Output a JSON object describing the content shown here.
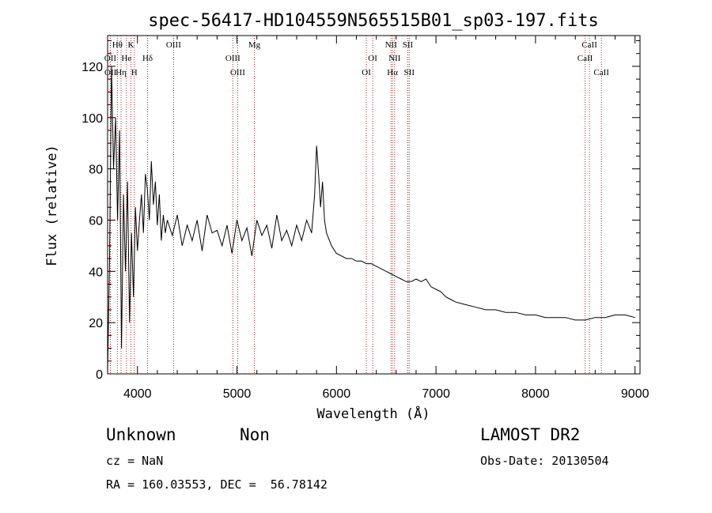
{
  "chart_data": {
    "type": "line",
    "title": "spec-56417-HD104559N565515B01_sp03-197.fits",
    "xlabel": "Wavelength (Å)",
    "ylabel": "Flux (relative)",
    "xlim": [
      3700,
      9050
    ],
    "ylim": [
      0,
      132
    ],
    "xticks": [
      4000,
      5000,
      6000,
      7000,
      8000,
      9000
    ],
    "yticks": [
      0,
      20,
      40,
      60,
      80,
      100,
      120
    ],
    "grid": false,
    "series": [
      {
        "color": "#000000",
        "x": [
          3700,
          3720,
          3740,
          3760,
          3780,
          3800,
          3820,
          3840,
          3860,
          3880,
          3900,
          3920,
          3940,
          3960,
          3980,
          4000,
          4020,
          4040,
          4060,
          4080,
          4100,
          4120,
          4140,
          4160,
          4180,
          4200,
          4220,
          4240,
          4260,
          4280,
          4300,
          4350,
          4400,
          4450,
          4500,
          4550,
          4600,
          4650,
          4700,
          4750,
          4800,
          4850,
          4900,
          4950,
          5000,
          5050,
          5100,
          5150,
          5200,
          5250,
          5300,
          5350,
          5400,
          5450,
          5500,
          5550,
          5600,
          5650,
          5700,
          5750,
          5780,
          5800,
          5820,
          5840,
          5860,
          5880,
          5900,
          5950,
          6000,
          6050,
          6100,
          6150,
          6200,
          6250,
          6300,
          6350,
          6400,
          6450,
          6500,
          6550,
          6600,
          6650,
          6700,
          6750,
          6800,
          6850,
          6900,
          6950,
          7000,
          7050,
          7100,
          7150,
          7200,
          7300,
          7400,
          7500,
          7600,
          7700,
          7800,
          7900,
          8000,
          8100,
          8200,
          8300,
          8400,
          8500,
          8600,
          8700,
          8800,
          8900,
          9000
        ],
        "y": [
          0,
          45,
          120,
          80,
          100,
          60,
          95,
          10,
          70,
          40,
          75,
          20,
          55,
          30,
          65,
          48,
          60,
          70,
          55,
          78,
          72,
          60,
          83,
          66,
          75,
          58,
          70,
          52,
          62,
          55,
          60,
          54,
          62,
          50,
          58,
          52,
          60,
          48,
          62,
          55,
          56,
          50,
          58,
          47,
          60,
          52,
          57,
          46,
          60,
          54,
          58,
          49,
          62,
          52,
          56,
          50,
          58,
          52,
          60,
          55,
          70,
          89,
          78,
          65,
          75,
          60,
          55,
          50,
          47,
          46,
          45,
          45,
          44,
          44,
          43,
          43,
          42,
          41,
          40,
          39,
          38,
          37,
          36,
          36,
          37,
          36,
          37,
          34,
          33,
          32,
          30,
          29,
          28,
          27,
          26,
          25,
          25,
          24,
          24,
          23,
          23,
          22,
          22,
          22,
          21,
          21,
          22,
          22,
          23,
          23,
          22
        ]
      }
    ],
    "lines": [
      {
        "label": "Hθ",
        "x": 3798,
        "row": 0
      },
      {
        "label": "OII",
        "x": 3727,
        "row": 1
      },
      {
        "label": "OII",
        "x": 3729,
        "row": 2
      },
      {
        "label": "He",
        "x": 3889,
        "row": 1
      },
      {
        "label": "Hη",
        "x": 3835,
        "row": 2
      },
      {
        "label": "K",
        "x": 3934,
        "row": 0
      },
      {
        "label": "H",
        "x": 3968,
        "row": 2
      },
      {
        "label": "Hδ",
        "x": 4102,
        "row": 1
      },
      {
        "label": "OIII",
        "x": 4363,
        "row": 0
      },
      {
        "label": "OIII",
        "x": 4959,
        "row": 1
      },
      {
        "label": "OIII",
        "x": 5007,
        "row": 2
      },
      {
        "label": "Mg",
        "x": 5175,
        "row": 0
      },
      {
        "label": "OI",
        "x": 6300,
        "row": 2
      },
      {
        "label": "OI",
        "x": 6364,
        "row": 1
      },
      {
        "label": "NII",
        "x": 6548,
        "row": 0
      },
      {
        "label": "NII",
        "x": 6584,
        "row": 1
      },
      {
        "label": "Hα",
        "x": 6563,
        "row": 2
      },
      {
        "label": "SII",
        "x": 6717,
        "row": 0
      },
      {
        "label": "SII",
        "x": 6731,
        "row": 2
      },
      {
        "label": "CaII",
        "x": 8498,
        "row": 1
      },
      {
        "label": "CaII",
        "x": 8542,
        "row": 0
      },
      {
        "label": "CaII",
        "x": 8662,
        "row": 2
      }
    ],
    "line_color": "#aa2222"
  },
  "footer": {
    "object_class": "Unknown",
    "subclass": "Non",
    "survey": "LAMOST DR2",
    "cz": "cz = NaN",
    "obs_date": "Obs-Date: 20130504",
    "radec": "RA = 160.03553, DEC =  56.78142"
  }
}
